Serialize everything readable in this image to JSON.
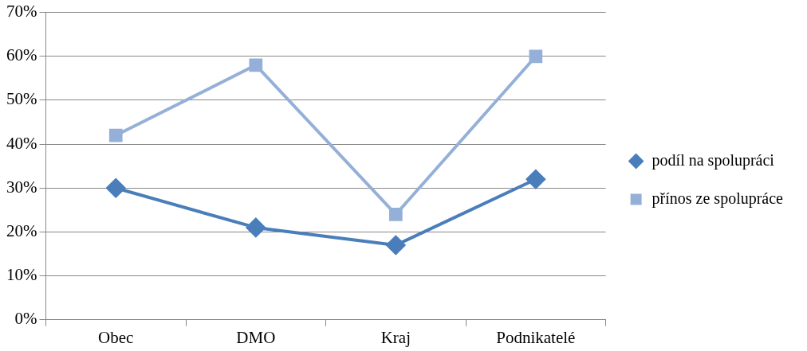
{
  "chart_data": {
    "type": "line",
    "categories": [
      "Obec",
      "DMO",
      "Kraj",
      "Podnikatelé"
    ],
    "series": [
      {
        "name": "podíl na spolupráci",
        "color": "#4a7ebb",
        "values": [
          30,
          21,
          17,
          32
        ],
        "marker": "diamond"
      },
      {
        "name": "přínos ze spolupráce",
        "color": "#95b0d8",
        "values": [
          42,
          58,
          24,
          60
        ],
        "marker": "square"
      }
    ],
    "ylim": [
      0,
      70
    ],
    "yticks": [
      {
        "value": 0,
        "label": "0%"
      },
      {
        "value": 10,
        "label": "10%"
      },
      {
        "value": 20,
        "label": "20%"
      },
      {
        "value": 30,
        "label": "30%"
      },
      {
        "value": 40,
        "label": "40%"
      },
      {
        "value": 50,
        "label": "50%"
      },
      {
        "value": 60,
        "label": "60%"
      },
      {
        "value": 70,
        "label": "70%"
      }
    ],
    "grid": "y",
    "legend": "right",
    "line_style": "solid"
  }
}
